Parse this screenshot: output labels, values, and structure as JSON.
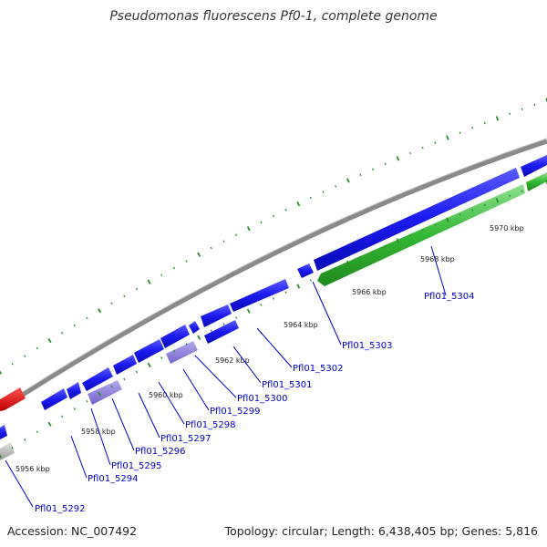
{
  "title": "Pseudomonas fluorescens Pf0-1, complete genome",
  "footer": {
    "accession": "Accession: NC_007492",
    "summary": "Topology: circular; Length: 6,438,405 bp; Genes: 5,816"
  },
  "scale_labels": [
    "5956 kbp",
    "5958 kbp",
    "5960 kbp",
    "5962 kbp",
    "5964 kbp",
    "5966 kbp",
    "5968 kbp",
    "5970 kbp"
  ],
  "gene_labels": [
    "Pfl01_5292",
    "Pfl01_5294",
    "Pfl01_5295",
    "Pfl01_5296",
    "Pfl01_5297",
    "Pfl01_5298",
    "Pfl01_5299",
    "Pfl01_5300",
    "Pfl01_5301",
    "Pfl01_5302",
    "Pfl01_5303",
    "Pfl01_5304"
  ],
  "colors": {
    "backbone": "#8a8a8a",
    "forward_gene": "#1a1aee",
    "rna_gene": "#8f80d8",
    "reverse_gene": "#33b833",
    "highlight_gene": "#e01818",
    "pseudo_gene": "#bdbdbd",
    "tick": "#2e8b2e",
    "label": "#0000cc"
  }
}
